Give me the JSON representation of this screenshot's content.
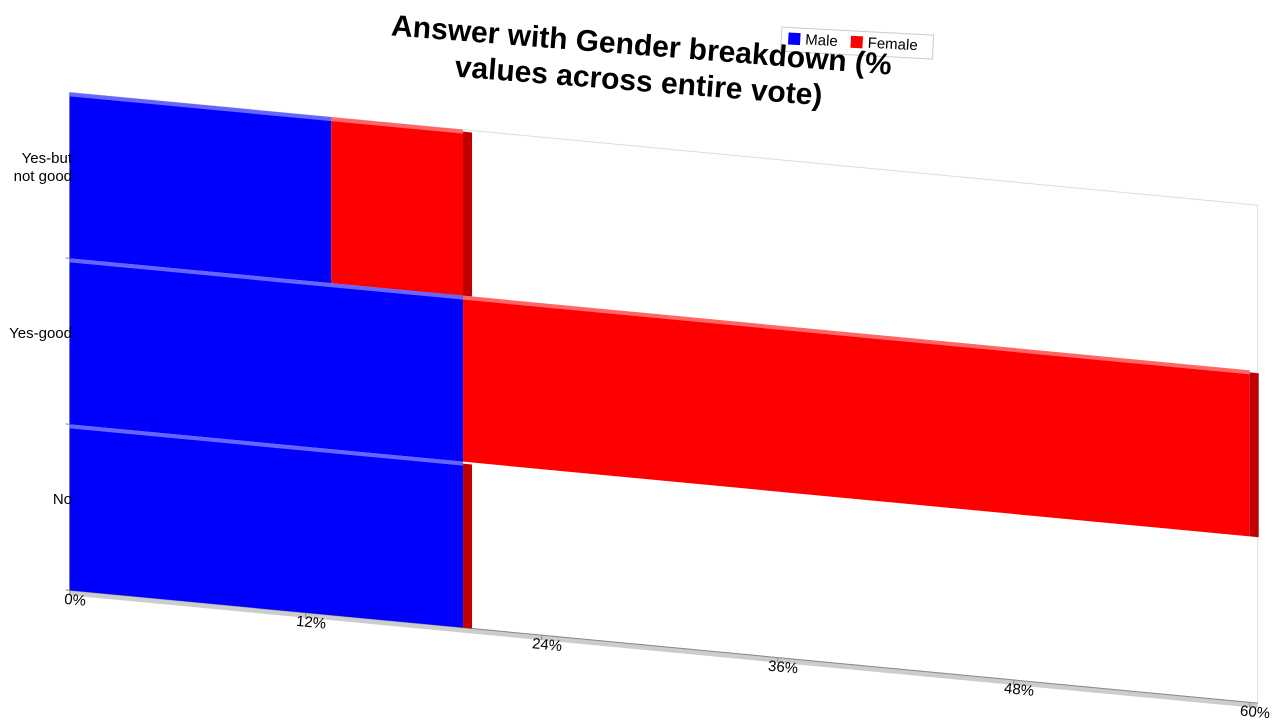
{
  "chart_data": {
    "type": "bar",
    "orientation": "horizontal",
    "stacked": true,
    "title": "Answer with Gender breakdown (% values across entire vote)",
    "categories": [
      "Yes-but not good",
      "Yes-good",
      "No"
    ],
    "series": [
      {
        "name": "Male",
        "color": "#0000ff",
        "values": [
          13.3,
          20,
          20
        ]
      },
      {
        "name": "Female",
        "color": "#ff0000",
        "values": [
          6.7,
          40,
          0
        ]
      }
    ],
    "xlim": [
      0,
      60
    ],
    "xticks": [
      {
        "value": 0,
        "label": "0%"
      },
      {
        "value": 12,
        "label": "12%"
      },
      {
        "value": 24,
        "label": "24%"
      },
      {
        "value": 36,
        "label": "36%"
      },
      {
        "value": 48,
        "label": "48%"
      },
      {
        "value": 60,
        "label": "60%"
      }
    ],
    "legend": "top"
  }
}
